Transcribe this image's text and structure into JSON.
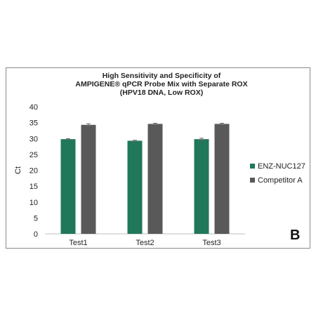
{
  "chart_data": {
    "type": "bar",
    "title_lines": [
      "High Sensitivity and Specificity of",
      "AMPIGENE® qPCR Probe Mix with Separate ROX",
      "(HPV18 DNA, Low ROX)"
    ],
    "xlabel": "",
    "ylabel": "Ct",
    "ylim": [
      0,
      40
    ],
    "yticks": [
      0,
      5,
      10,
      15,
      20,
      25,
      30,
      35,
      40
    ],
    "categories": [
      "Test1",
      "Test2",
      "Test3"
    ],
    "series": [
      {
        "name": "ENZ-NUC127",
        "color": "#21775a",
        "values": [
          29.8,
          29.3,
          29.8
        ],
        "errors": [
          0.15,
          0.15,
          0.3
        ]
      },
      {
        "name": "Competitor A",
        "color": "#595959",
        "values": [
          34.3,
          34.6,
          34.6
        ],
        "errors": [
          0.35,
          0.2,
          0.2
        ]
      }
    ],
    "grid": false,
    "legend_position": "right",
    "panel_label": "B"
  }
}
